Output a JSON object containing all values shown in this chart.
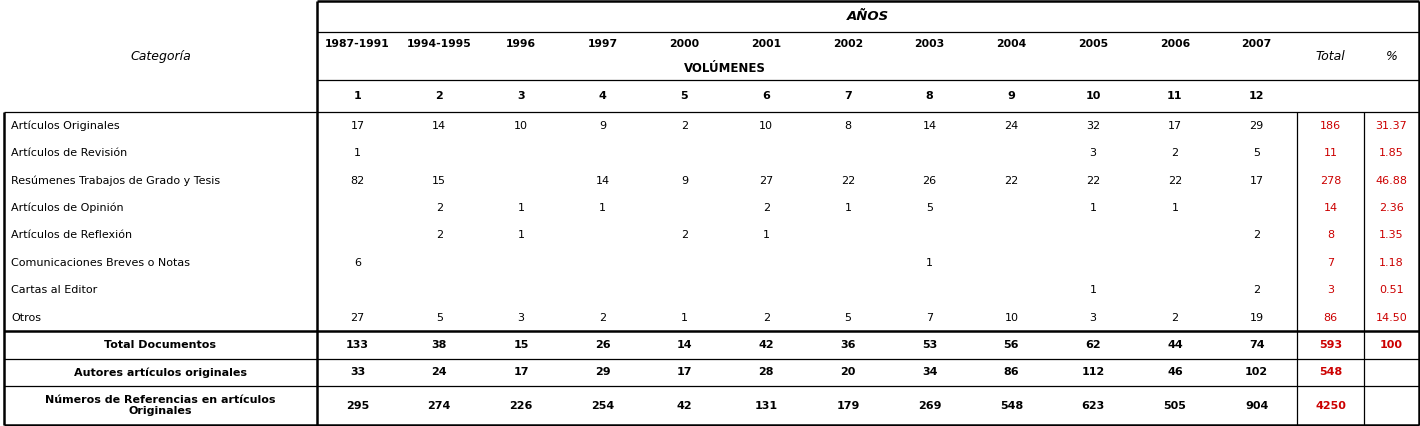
{
  "header_anos": "AÑOS",
  "header_volumenes": "VOLÚMENES",
  "col_categoria": "Categoría",
  "col_total": "Total",
  "col_pct": "%",
  "year_headers": [
    "1987-1991",
    "1994-1995",
    "1996",
    "1997",
    "2000",
    "2001",
    "2002",
    "2003",
    "2004",
    "2005",
    "2006",
    "2007"
  ],
  "vol_headers": [
    "1",
    "2",
    "3",
    "4",
    "5",
    "6",
    "7",
    "8",
    "9",
    "10",
    "11",
    "12"
  ],
  "rows": [
    {
      "categoria": "Artículos Originales",
      "values": [
        "17",
        "14",
        "10",
        "9",
        "2",
        "10",
        "8",
        "14",
        "24",
        "32",
        "17",
        "29"
      ],
      "total": "186",
      "pct": "31.37",
      "bold": false
    },
    {
      "categoria": "Artículos de Revisión",
      "values": [
        "1",
        "",
        "",
        "",
        "",
        "",
        "",
        "",
        "",
        "3",
        "2",
        "5"
      ],
      "total": "11",
      "pct": "1.85",
      "bold": false
    },
    {
      "categoria": "Resúmenes Trabajos de Grado y Tesis",
      "values": [
        "82",
        "15",
        "",
        "14",
        "9",
        "27",
        "22",
        "26",
        "22",
        "22",
        "22",
        "17"
      ],
      "total": "278",
      "pct": "46.88",
      "bold": false
    },
    {
      "categoria": "Artículos de Opinión",
      "values": [
        "",
        "2",
        "1",
        "1",
        "",
        "2",
        "1",
        "5",
        "",
        "1",
        "1",
        ""
      ],
      "total": "14",
      "pct": "2.36",
      "bold": false
    },
    {
      "categoria": "Artículos de Reflexión",
      "values": [
        "",
        "2",
        "1",
        "",
        "2",
        "1",
        "",
        "",
        "",
        "",
        "",
        "2"
      ],
      "total": "8",
      "pct": "1.35",
      "bold": false
    },
    {
      "categoria": "Comunicaciones Breves o Notas",
      "values": [
        "6",
        "",
        "",
        "",
        "",
        "",
        "",
        "1",
        "",
        "",
        "",
        ""
      ],
      "total": "7",
      "pct": "1.18",
      "bold": false
    },
    {
      "categoria": "Cartas al Editor",
      "values": [
        "",
        "",
        "",
        "",
        "",
        "",
        "",
        "",
        "",
        "1",
        "",
        "2"
      ],
      "total": "3",
      "pct": "0.51",
      "bold": false
    },
    {
      "categoria": "Otros",
      "values": [
        "27",
        "5",
        "3",
        "2",
        "1",
        "2",
        "5",
        "7",
        "10",
        "3",
        "2",
        "19"
      ],
      "total": "86",
      "pct": "14.50",
      "bold": false
    },
    {
      "categoria": "Total Documentos",
      "values": [
        "133",
        "38",
        "15",
        "26",
        "14",
        "42",
        "36",
        "53",
        "56",
        "62",
        "44",
        "74"
      ],
      "total": "593",
      "pct": "100",
      "bold": true
    },
    {
      "categoria": "Autores artículos originales",
      "values": [
        "33",
        "24",
        "17",
        "29",
        "17",
        "28",
        "20",
        "34",
        "86",
        "112",
        "46",
        "102"
      ],
      "total": "548",
      "pct": "",
      "bold": true
    },
    {
      "categoria": "Números de Referencias en artículos\nOriginales",
      "values": [
        "295",
        "274",
        "226",
        "254",
        "42",
        "131",
        "179",
        "269",
        "548",
        "623",
        "505",
        "904"
      ],
      "total": "4250",
      "pct": "",
      "bold": true
    }
  ],
  "red_color": "#cc0000",
  "black_color": "#000000",
  "bg_color": "#ffffff",
  "fig_w": 14.2,
  "fig_h": 4.26,
  "dpi": 100
}
